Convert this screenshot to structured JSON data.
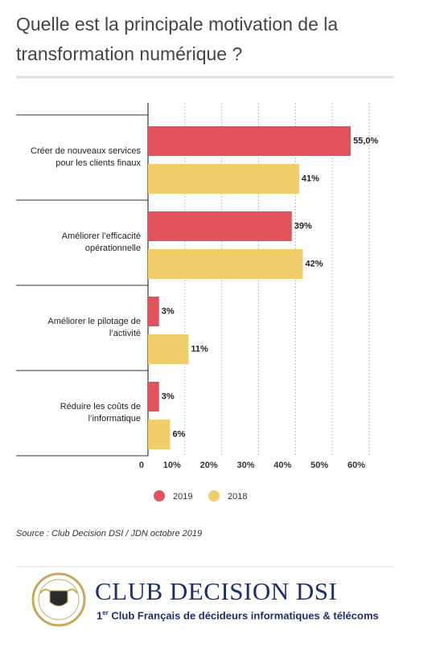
{
  "chart_data": {
    "type": "bar",
    "orientation": "horizontal",
    "title": "Quelle est la principale motivation de la transformation numérique ?",
    "categories": [
      "Créer de nouveaux services\npour les clients finaux",
      "Améliorer l’efficacité\nopérationnelle",
      "Améliorer le pilotage de\nl’activité",
      "Réduire les coûts de\nl’informatique"
    ],
    "series": [
      {
        "name": "2019",
        "color": "#e0535b",
        "values": [
          55.0,
          39,
          3,
          3
        ],
        "value_labels": [
          "55,0%",
          "39%",
          "3%",
          "3%"
        ]
      },
      {
        "name": "2018",
        "color": "#f0cd6b",
        "values": [
          41,
          42,
          11,
          6
        ],
        "value_labels": [
          "41%",
          "42%",
          "11%",
          "6%"
        ]
      }
    ],
    "xlim": [
      0,
      60
    ],
    "xticks": [
      0,
      {
        "value": 10,
        "label": "10%"
      },
      {
        "value": 20,
        "label": "20%"
      },
      {
        "value": 30,
        "label": "30%"
      },
      {
        "value": 40,
        "label": "40%"
      },
      {
        "value": 50,
        "label": "50%"
      },
      {
        "value": 60,
        "label": "60%"
      }
    ],
    "grid": true,
    "legend": "bottom",
    "source": "Source : Club Decision DSI / JDN octobre 2019"
  },
  "footer": {
    "brand": "CLUB DECISION DSI",
    "ordinal": "1",
    "ordinal_suffix": "er",
    "tagline": "Club Français de décideurs informatiques & télécoms"
  }
}
